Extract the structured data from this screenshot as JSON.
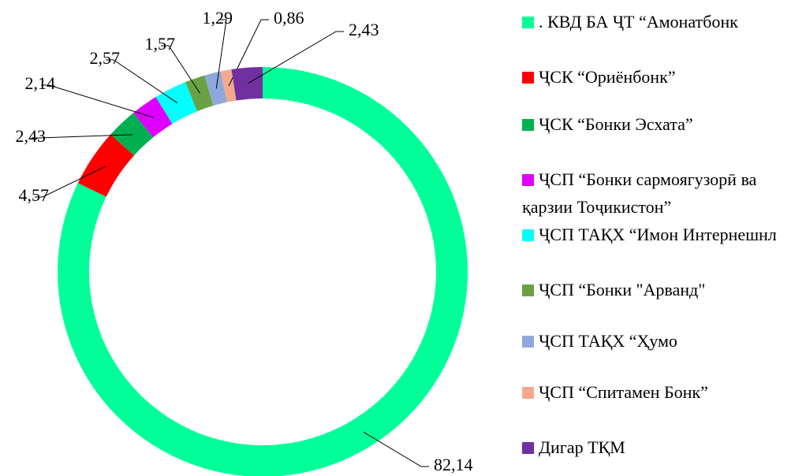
{
  "chart_data": {
    "type": "donut",
    "categories": [
      ". КВД БА ҶТ “Амонатбонк",
      "ҶСК “Ориёнбонк”",
      "ҶСК “Бонки Эсхата”",
      "ҶСП “Бонки сармоягузорӣ ва қарзии Тоҷикистон”",
      "ҶСП ТАҚХ “Имон Интернешнл",
      "ҶСП “Бонки \"Арванд\"",
      "ҶСП ТАҚХ “Ҳумо",
      "ҶСП “Спитамен Бонк”",
      "Дигар ТҚМ"
    ],
    "values": [
      82.14,
      4.57,
      2.43,
      2.14,
      2.57,
      1.57,
      1.29,
      0.86,
      2.43
    ],
    "value_labels": [
      "82,14",
      "4,57",
      "2,43",
      "2,14",
      "2,57",
      "1,57",
      "1,29",
      "0,86",
      "2,43"
    ],
    "colors": [
      "#00ff99",
      "#ff0000",
      "#00b050",
      "#dd00ff",
      "#00ffff",
      "#6aa143",
      "#8fa8dc",
      "#f4a98d",
      "#7030a0"
    ],
    "legend": "right"
  }
}
